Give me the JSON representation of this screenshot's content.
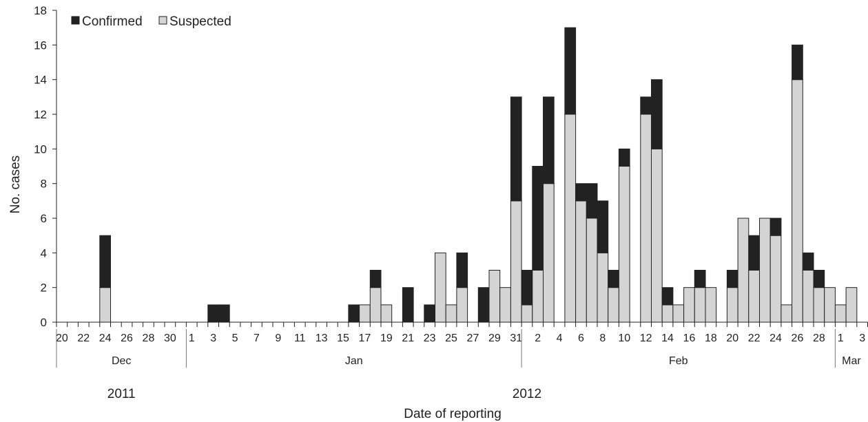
{
  "chart_data": {
    "type": "bar",
    "stacked": true,
    "title": "",
    "xlabel": "Date of reporting",
    "ylabel": "No.  cases",
    "ylim": [
      0,
      18
    ],
    "y_ticks": [
      0,
      2,
      4,
      6,
      8,
      10,
      12,
      14,
      16,
      18
    ],
    "grid": false,
    "legend_position": "top-left",
    "x_start_date": "2011-12-20",
    "dates": [
      "2011-12-20",
      "2011-12-21",
      "2011-12-22",
      "2011-12-23",
      "2011-12-24",
      "2011-12-25",
      "2011-12-26",
      "2011-12-27",
      "2011-12-28",
      "2011-12-29",
      "2011-12-30",
      "2011-12-31",
      "2012-01-01",
      "2012-01-02",
      "2012-01-03",
      "2012-01-04",
      "2012-01-05",
      "2012-01-06",
      "2012-01-07",
      "2012-01-08",
      "2012-01-09",
      "2012-01-10",
      "2012-01-11",
      "2012-01-12",
      "2012-01-13",
      "2012-01-14",
      "2012-01-15",
      "2012-01-16",
      "2012-01-17",
      "2012-01-18",
      "2012-01-19",
      "2012-01-20",
      "2012-01-21",
      "2012-01-22",
      "2012-01-23",
      "2012-01-24",
      "2012-01-25",
      "2012-01-26",
      "2012-01-27",
      "2012-01-28",
      "2012-01-29",
      "2012-01-30",
      "2012-01-31",
      "2012-02-01",
      "2012-02-02",
      "2012-02-03",
      "2012-02-04",
      "2012-02-05",
      "2012-02-06",
      "2012-02-07",
      "2012-02-08",
      "2012-02-09",
      "2012-02-10",
      "2012-02-11",
      "2012-02-12",
      "2012-02-13",
      "2012-02-14",
      "2012-02-15",
      "2012-02-16",
      "2012-02-17",
      "2012-02-18",
      "2012-02-19",
      "2012-02-20",
      "2012-02-21",
      "2012-02-22",
      "2012-02-23",
      "2012-02-24",
      "2012-02-25",
      "2012-02-26",
      "2012-02-27",
      "2012-02-28",
      "2012-02-29",
      "2012-03-01",
      "2012-03-02",
      "2012-03-03"
    ],
    "x_tick_labels": [
      "20",
      "22",
      "24",
      "26",
      "28",
      "30",
      "1",
      "3",
      "5",
      "7",
      "9",
      "11",
      "13",
      "15",
      "17",
      "19",
      "21",
      "23",
      "25",
      "27",
      "29",
      "31",
      "2",
      "4",
      "6",
      "8",
      "10",
      "12",
      "14",
      "16",
      "18",
      "20",
      "22",
      "24",
      "26",
      "28",
      "1",
      "3"
    ],
    "months": [
      "Dec",
      "Jan",
      "Feb",
      "Mar"
    ],
    "years": [
      "2011",
      "2012"
    ],
    "series": [
      {
        "name": "Suspected",
        "color": "#d4d4d4",
        "values": [
          0,
          0,
          0,
          0,
          2,
          0,
          0,
          0,
          0,
          0,
          0,
          0,
          0,
          0,
          0,
          0,
          0,
          0,
          0,
          0,
          0,
          0,
          0,
          0,
          0,
          0,
          0,
          0,
          1,
          2,
          1,
          0,
          0,
          0,
          0,
          4,
          1,
          2,
          0,
          0,
          3,
          2,
          7,
          1,
          3,
          8,
          0,
          12,
          7,
          6,
          4,
          2,
          9,
          0,
          12,
          10,
          1,
          1,
          2,
          2,
          2,
          0,
          2,
          6,
          3,
          6,
          5,
          1,
          14,
          3,
          2,
          2,
          1,
          2,
          0
        ]
      },
      {
        "name": "Confirmed",
        "color": "#222222",
        "values": [
          0,
          0,
          0,
          0,
          3,
          0,
          0,
          0,
          0,
          0,
          0,
          0,
          0,
          0,
          1,
          1,
          0,
          0,
          0,
          0,
          0,
          0,
          0,
          0,
          0,
          0,
          0,
          1,
          0,
          1,
          0,
          0,
          2,
          0,
          1,
          0,
          0,
          2,
          0,
          2,
          0,
          0,
          6,
          2,
          6,
          5,
          0,
          5,
          1,
          2,
          3,
          1,
          1,
          0,
          1,
          4,
          1,
          0,
          0,
          1,
          0,
          0,
          1,
          0,
          2,
          0,
          1,
          0,
          2,
          1,
          1,
          0,
          0,
          0,
          0
        ]
      }
    ]
  }
}
